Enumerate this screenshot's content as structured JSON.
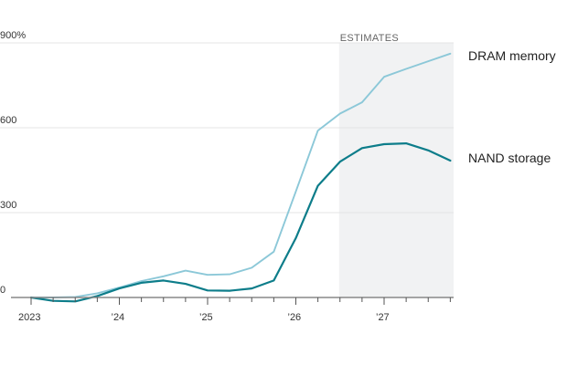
{
  "chart_data": {
    "type": "line",
    "x_tick_labels": [
      "2023",
      "’24",
      "’25",
      "’26",
      "’27"
    ],
    "x_tick_years": [
      2023,
      2024,
      2025,
      2026,
      2027
    ],
    "y_tick_labels": [
      "0",
      "300",
      "600",
      "900%"
    ],
    "y_ticks": [
      0,
      300,
      600,
      900
    ],
    "ylim": [
      0,
      900
    ],
    "grid": true,
    "shaded_region": {
      "label": "ESTIMATES",
      "x_start": 2026.5,
      "x_end": 2027.75
    },
    "x": [
      2023.0,
      2023.25,
      2023.5,
      2023.75,
      2024.0,
      2024.25,
      2024.5,
      2024.75,
      2025.0,
      2025.25,
      2025.5,
      2025.75,
      2026.0,
      2026.25,
      2026.5,
      2026.75,
      2027.0,
      2027.25,
      2027.5,
      2027.75
    ],
    "series": [
      {
        "name": "DRAM memory",
        "color": "#8cc8d8",
        "values": [
          0,
          0,
          2,
          15,
          35,
          58,
          75,
          95,
          80,
          82,
          105,
          162,
          375,
          590,
          650,
          690,
          780,
          808,
          835,
          862
        ]
      },
      {
        "name": "NAND storage",
        "color": "#0d7d8a",
        "values": [
          0,
          -12,
          -14,
          5,
          32,
          52,
          60,
          48,
          25,
          24,
          32,
          60,
          210,
          395,
          480,
          528,
          542,
          545,
          520,
          484
        ]
      }
    ]
  }
}
